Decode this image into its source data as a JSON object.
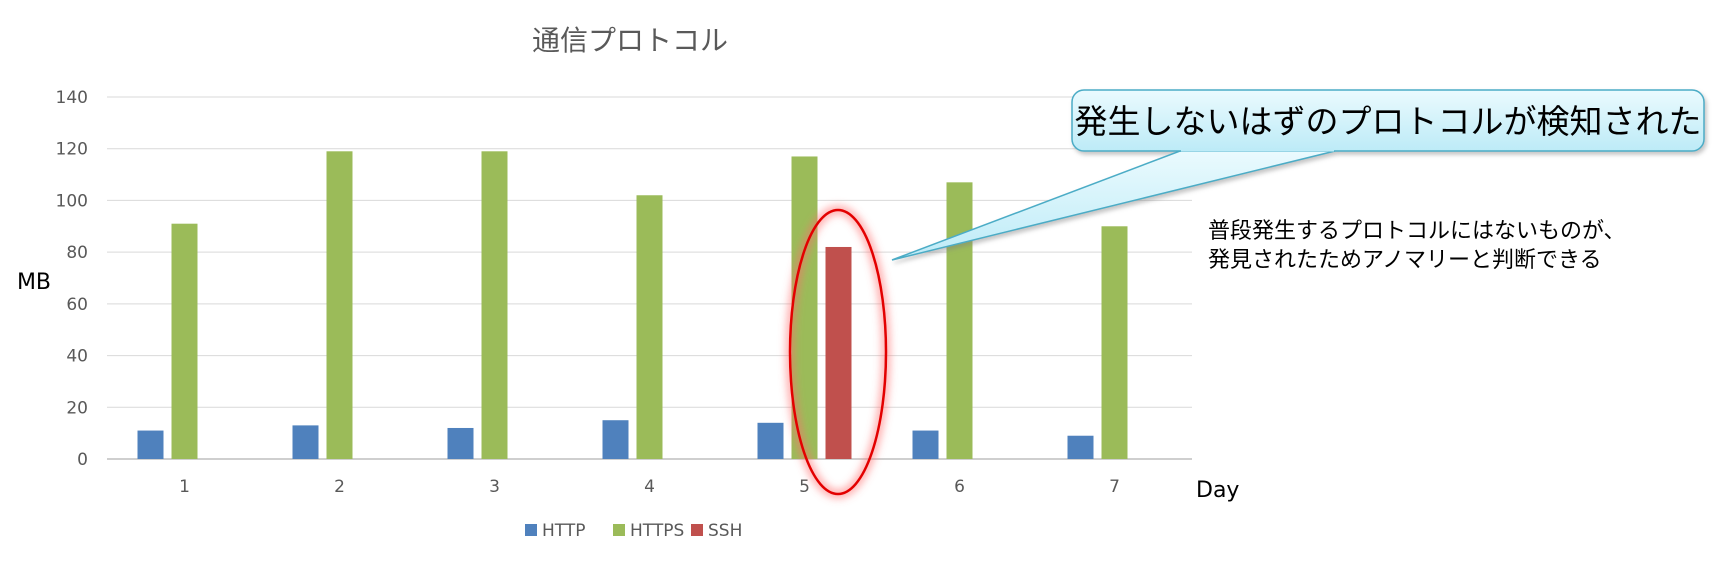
{
  "chart_data": {
    "type": "bar",
    "title": "通信プロトコル",
    "xlabel": "Day",
    "ylabel": "MB",
    "categories": [
      "1",
      "2",
      "3",
      "4",
      "5",
      "6",
      "7"
    ],
    "ylim": [
      0,
      140
    ],
    "yticks": [
      0,
      20,
      40,
      60,
      80,
      100,
      120,
      140
    ],
    "grid": true,
    "legend_position": "bottom",
    "series": [
      {
        "name": "HTTP",
        "color": "#4F81BD",
        "values": [
          11,
          13,
          12,
          15,
          14,
          11,
          9
        ]
      },
      {
        "name": "HTTPS",
        "color": "#9BBB59",
        "values": [
          91,
          119,
          119,
          102,
          117,
          107,
          90
        ]
      },
      {
        "name": "SSH",
        "color": "#C0504D",
        "values": [
          null,
          null,
          null,
          null,
          82,
          null,
          null
        ]
      }
    ]
  },
  "annotations": {
    "callout_text": "発生しないはずのプロトコルが検知された",
    "note_lines": [
      "普段発生するプロトコルにはないものが、",
      "発見されたためアノマリーと判断できる"
    ],
    "highlight_day": "5",
    "highlight_color": "#E30000",
    "callout_fill": "#C8F0FA",
    "callout_border": "#4BACC6"
  }
}
